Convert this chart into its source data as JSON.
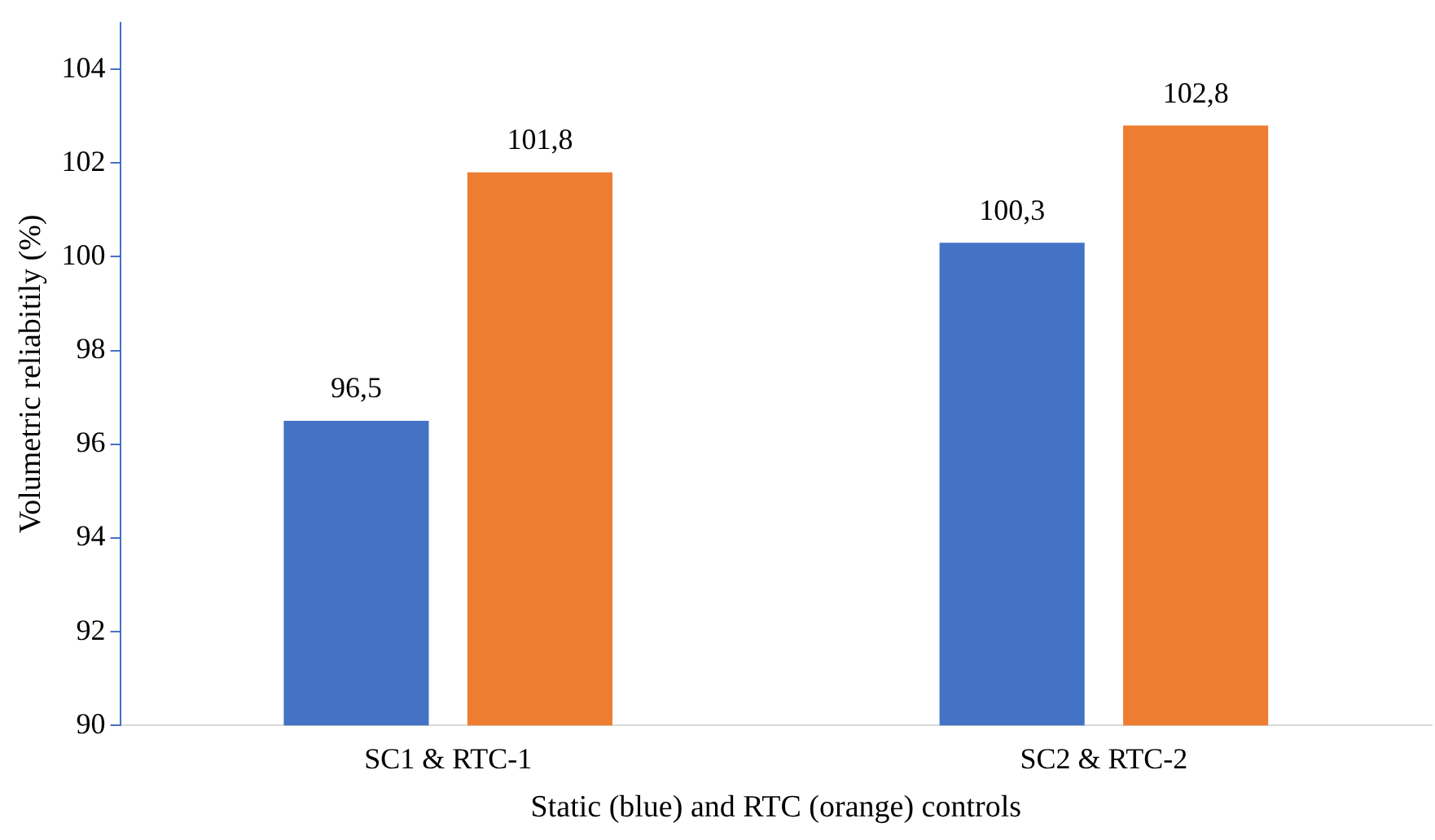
{
  "chart_data": {
    "type": "bar",
    "xlabel": "Static (blue) and RTC (orange) controls",
    "ylabel": "Volumetric reliabitily (%)",
    "categories": [
      "SC1 & RTC-1",
      "SC2 & RTC-2"
    ],
    "series": [
      {
        "color": "#4472c4",
        "values": [
          96.5,
          100.3
        ],
        "value_labels": [
          "96,5",
          "100,3"
        ]
      },
      {
        "color": "#ed7d31",
        "values": [
          101.8,
          102.8
        ],
        "value_labels": [
          "101,8",
          "102,8"
        ]
      }
    ],
    "ylim": [
      90,
      105
    ],
    "yticks": [
      90,
      92,
      94,
      96,
      98,
      100,
      102,
      104
    ],
    "grid": false,
    "legend": false
  }
}
